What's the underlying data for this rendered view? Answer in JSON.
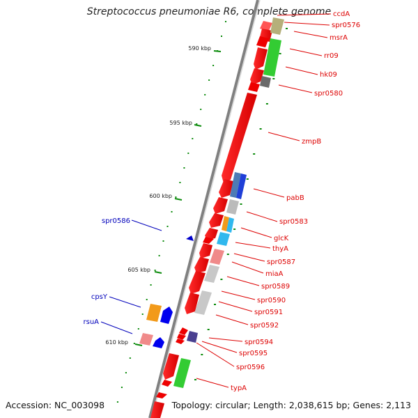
{
  "title": "Streptococcus pneumoniae R6, complete genome",
  "footer": {
    "accession": "Accession: NC_003098",
    "summary": "Topology: circular; Length: 2,038,615 bp; Genes: 2,113"
  },
  "colors": {
    "cds": "#ff0000",
    "forward_label": "#0000bb",
    "reverse_label": "#dd0000",
    "tick": "#0a8a0a",
    "backbone": "#808080"
  },
  "scale_labels": [
    "590 kbp",
    "595 kbp",
    "600 kbp",
    "605 kbp",
    "610 kbp"
  ],
  "reverse_features": [
    {
      "label": "ccdA",
      "track": "#b5b07a"
    },
    {
      "label": "spr0576",
      "track": "#b5b07a"
    },
    {
      "label": "msrA",
      "track": "#b5b07a"
    },
    {
      "label": "rr09",
      "track": "#33cc33"
    },
    {
      "label": "hk09",
      "track": "#33cc33"
    },
    {
      "label": "spr0580",
      "track": "#777777"
    },
    {
      "label": "zmpB",
      "track": ""
    },
    {
      "label": "pabB",
      "track": "#1f3fd8"
    },
    {
      "label": "spr0583",
      "track": "#bbbbbb"
    },
    {
      "label": "glcK",
      "track": "#f29a1a"
    },
    {
      "label": "thyA",
      "track": "#30b8ee"
    },
    {
      "label": "spr0587",
      "track": ""
    },
    {
      "label": "miaA",
      "track": "#f08a8a"
    },
    {
      "label": "spr0589",
      "track": "#bbbbbb"
    },
    {
      "label": "spr0590",
      "track": "#bbbbbb"
    },
    {
      "label": "spr0591",
      "track": "#bbbbbb"
    },
    {
      "label": "spr0592",
      "track": "#bbbbbb"
    },
    {
      "label": "spr0594",
      "track": "#4a4090"
    },
    {
      "label": "spr0595",
      "track": ""
    },
    {
      "label": "spr0596",
      "track": ""
    },
    {
      "label": "typA",
      "track": "#33cc33"
    }
  ],
  "forward_features": [
    {
      "label": "spr0586",
      "track": "#1f3fd8"
    },
    {
      "label": "cpsY",
      "track": "#f29a1a"
    },
    {
      "label": "rsuA",
      "track": "#f08a8a"
    }
  ]
}
